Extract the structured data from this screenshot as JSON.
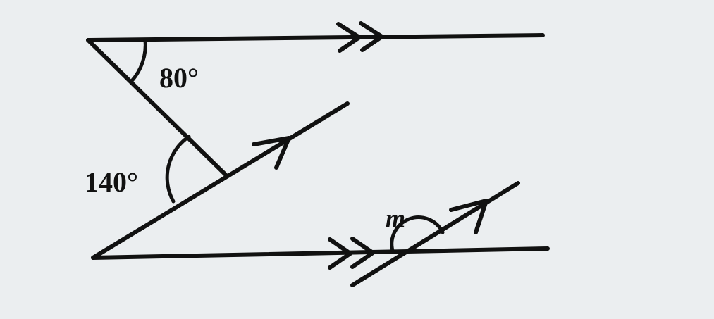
{
  "diagram": {
    "angle_top": "80°",
    "angle_middle": "140°",
    "angle_unknown": "m"
  },
  "colors": {
    "ink": "#111111",
    "background": "#ebeef0"
  }
}
